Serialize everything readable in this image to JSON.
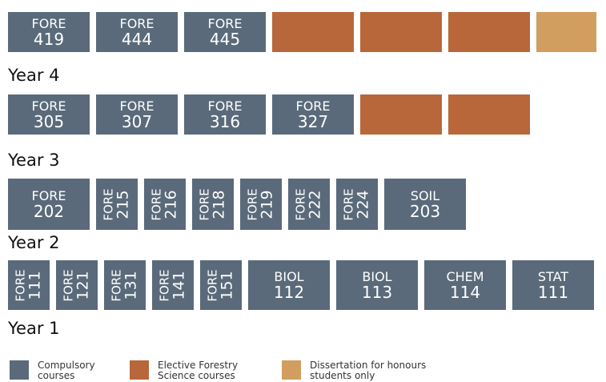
{
  "rows": [
    {
      "blocks": [
        {
          "subject": "FORE",
          "number": "419"
        },
        {
          "subject": "FORE",
          "number": "444"
        },
        {
          "subject": "FORE",
          "number": "445"
        },
        {
          "color": "#b8673b"
        },
        {
          "color": "#b8673b"
        },
        {
          "color": "#b8673b"
        },
        {
          "color": "#d19e5f"
        }
      ]
    },
    {
      "label": "Year 4",
      "blocks": [
        {
          "subject": "FORE",
          "number": "305"
        },
        {
          "subject": "FORE",
          "number": "307"
        },
        {
          "subject": "FORE",
          "number": "316"
        },
        {
          "subject": "FORE",
          "number": "327"
        },
        {
          "color": "#b8673b"
        },
        {
          "color": "#b8673b"
        }
      ]
    },
    {
      "label": "Year 3",
      "blocks": [
        {
          "subject": "FORE",
          "number": "202"
        },
        {
          "subject": "FORE",
          "number": "215"
        },
        {
          "subject": "FORE",
          "number": "216"
        },
        {
          "subject": "FORE",
          "number": "218"
        },
        {
          "subject": "FORE",
          "number": "219"
        },
        {
          "subject": "FORE",
          "number": "222"
        },
        {
          "subject": "FORE",
          "number": "224"
        },
        {
          "subject": "SOIL",
          "number": "203"
        }
      ]
    },
    {
      "label": "Year 2",
      "blocks": [
        {
          "subject": "FORE",
          "number": "111"
        },
        {
          "subject": "FORE",
          "number": "121"
        },
        {
          "subject": "FORE",
          "number": "131"
        },
        {
          "subject": "FORE",
          "number": "141"
        },
        {
          "subject": "FORE",
          "number": "151"
        },
        {
          "subject": "BIOL",
          "number": "112"
        },
        {
          "subject": "BIOL",
          "number": "113"
        },
        {
          "subject": "CHEM",
          "number": "114"
        },
        {
          "subject": "STAT",
          "number": "111"
        }
      ]
    }
  ],
  "bottom_label": "Year 1",
  "legend": [
    {
      "color": "#5a6a7a",
      "label": "Compulsory\ncourses"
    },
    {
      "color": "#b8673b",
      "label": "Elective Forestry\nScience courses"
    },
    {
      "color": "#d19e5f",
      "label": "Dissertation for honours\nstudents only"
    }
  ],
  "course_color": "#5a6a7a"
}
